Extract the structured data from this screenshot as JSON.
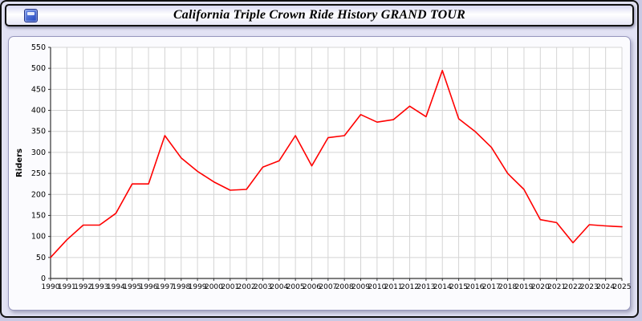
{
  "header": {
    "title": "California Triple Crown Ride History GRAND TOUR",
    "icon": "app-icon"
  },
  "colors": {
    "line": "#ff0000",
    "grid": "#d4d4d4",
    "axis": "#333333",
    "page_background": "#e2e2f4",
    "panel_background": "#fbfbfe",
    "plot_background": "#ffffff"
  },
  "chart_data": {
    "type": "line",
    "title": "California Triple Crown Ride History GRAND TOUR",
    "xlabel": "",
    "ylabel": "Riders",
    "ylim": [
      0,
      550
    ],
    "ytick_step": 50,
    "grid": true,
    "legend_position": "none",
    "x": [
      1990,
      1991,
      1992,
      1993,
      1994,
      1995,
      1996,
      1997,
      1998,
      1999,
      2000,
      2001,
      2002,
      2003,
      2004,
      2005,
      2006,
      2007,
      2008,
      2009,
      2010,
      2011,
      2012,
      2013,
      2014,
      2015,
      2016,
      2017,
      2018,
      2019,
      2020,
      2021,
      2022,
      2023,
      2024,
      2025
    ],
    "series": [
      {
        "name": "Riders",
        "color": "#ff0000",
        "values": [
          50,
          92,
          127,
          127,
          155,
          225,
          225,
          340,
          287,
          255,
          230,
          210,
          212,
          265,
          280,
          340,
          268,
          335,
          340,
          390,
          372,
          378,
          410,
          385,
          495,
          380,
          350,
          312,
          250,
          212,
          140,
          133,
          85,
          128,
          125,
          123
        ]
      }
    ]
  }
}
